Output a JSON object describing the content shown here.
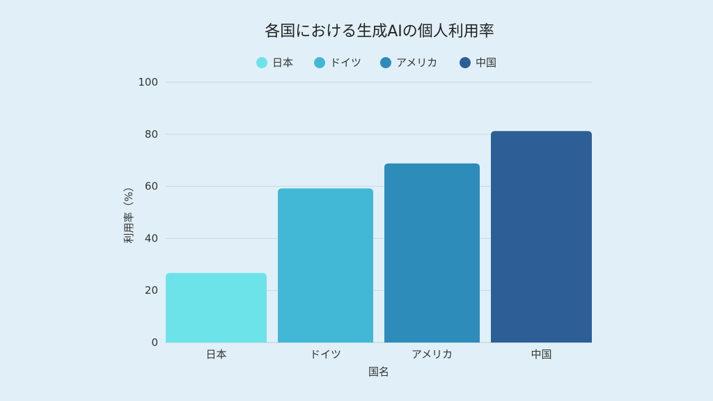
{
  "chart_data": {
    "type": "bar",
    "title": "各国における生成AIの個人利用率",
    "xlabel": "国名",
    "ylabel": "利用率（%）",
    "categories": [
      "日本",
      "ドイツ",
      "アメリカ",
      "中国"
    ],
    "values": [
      26.7,
      59.2,
      68.8,
      81.2
    ],
    "colors": [
      "#6ce3e8",
      "#42b8d6",
      "#2e8cba",
      "#2d5e96"
    ],
    "ylim": [
      0,
      100
    ],
    "yticks": [
      0,
      20,
      40,
      60,
      80,
      100
    ],
    "grid": true,
    "legend": {
      "position": "top-center",
      "entries": [
        "日本",
        "ドイツ",
        "アメリカ",
        "中国"
      ]
    }
  }
}
